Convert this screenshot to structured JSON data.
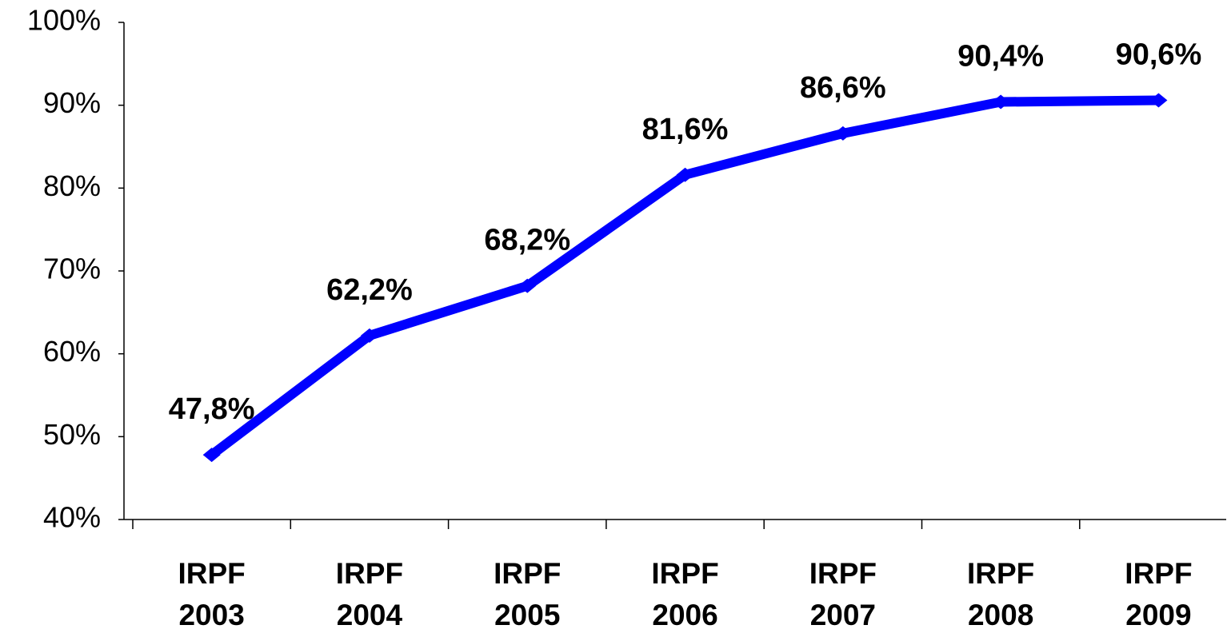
{
  "chart_data": {
    "type": "line",
    "categories": [
      "IRPF\n2003",
      "IRPF\n2004",
      "IRPF\n2005",
      "IRPF\n2006",
      "IRPF\n2007",
      "IRPF\n2008",
      "IRPF\n2009"
    ],
    "series": [
      {
        "name": null,
        "color": "#0000ff",
        "values": [
          47.8,
          62.2,
          68.2,
          81.6,
          86.6,
          90.4,
          90.6
        ],
        "value_labels": [
          "47,8%",
          "62,2%",
          "68,2%",
          "81,6%",
          "86,6%",
          "90,4%",
          "90,6%"
        ]
      }
    ],
    "ylim": [
      40,
      100
    ],
    "yticks": [
      {
        "value": 40,
        "label": "40%"
      },
      {
        "value": 50,
        "label": "50%"
      },
      {
        "value": 60,
        "label": "60%"
      },
      {
        "value": 70,
        "label": "70%"
      },
      {
        "value": 80,
        "label": "80%"
      },
      {
        "value": 90,
        "label": "90%"
      },
      {
        "value": 100,
        "label": "100%"
      }
    ],
    "grid": false
  }
}
